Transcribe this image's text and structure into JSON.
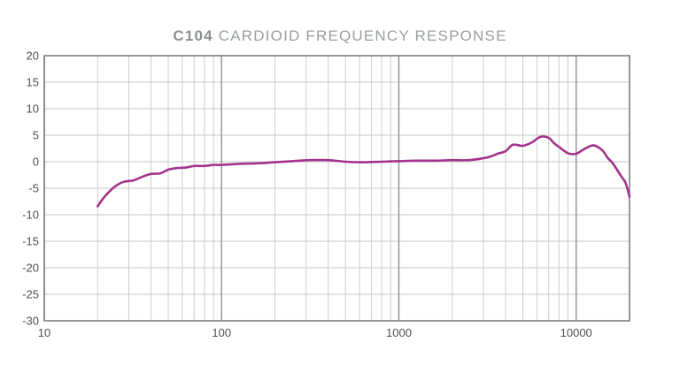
{
  "title": {
    "model": "C104",
    "text": " CARDIOID FREQUENCY RESPONSE"
  },
  "chart_data": {
    "type": "line",
    "title": "C104 CARDIOID FREQUENCY RESPONSE",
    "xlabel": "",
    "ylabel": "",
    "x_scale": "log",
    "xlim": [
      10,
      20000
    ],
    "ylim": [
      -30,
      20
    ],
    "x_ticks": [
      10,
      100,
      1000,
      10000
    ],
    "x_tick_labels": [
      "10",
      "100",
      "1000",
      "10000"
    ],
    "y_ticks": [
      20,
      15,
      10,
      5,
      0,
      -5,
      -10,
      -15,
      -20,
      -25,
      -30
    ],
    "y_tick_labels": [
      "20",
      "15",
      "10",
      "5",
      "0",
      "-5",
      "-10",
      "-15",
      "-20",
      "-25",
      "-30"
    ],
    "grid": true,
    "series": [
      {
        "color": "#a3338c",
        "x": [
          20,
          22,
          25,
          28,
          32,
          36,
          40,
          45,
          50,
          56,
          63,
          70,
          80,
          90,
          100,
          125,
          160,
          200,
          250,
          315,
          400,
          500,
          630,
          800,
          1000,
          1250,
          1600,
          2000,
          2500,
          3150,
          3600,
          4000,
          4400,
          5000,
          5600,
          6300,
          7000,
          7500,
          8000,
          9000,
          10000,
          11000,
          12500,
          14000,
          15000,
          16000,
          17000,
          18000,
          19000,
          20000
        ],
        "y": [
          -8.4,
          -6.5,
          -4.7,
          -3.8,
          -3.5,
          -2.8,
          -2.3,
          -2.2,
          -1.5,
          -1.2,
          -1.1,
          -0.8,
          -0.8,
          -0.6,
          -0.6,
          -0.4,
          -0.3,
          -0.1,
          0.1,
          0.3,
          0.3,
          0.0,
          -0.1,
          0.0,
          0.1,
          0.2,
          0.2,
          0.3,
          0.3,
          0.8,
          1.5,
          2.0,
          3.2,
          3.0,
          3.6,
          4.7,
          4.5,
          3.5,
          2.8,
          1.6,
          1.5,
          2.3,
          3.1,
          2.2,
          0.8,
          -0.2,
          -1.5,
          -2.8,
          -4.0,
          -6.6
        ]
      }
    ]
  },
  "colors": {
    "curve": "#a3338c",
    "frame": "#7a7d80",
    "major_grid": "#8c8f91",
    "minor_grid": "#c6c9ca",
    "title": "#8e9294",
    "tick_text": "#4d4f51"
  }
}
